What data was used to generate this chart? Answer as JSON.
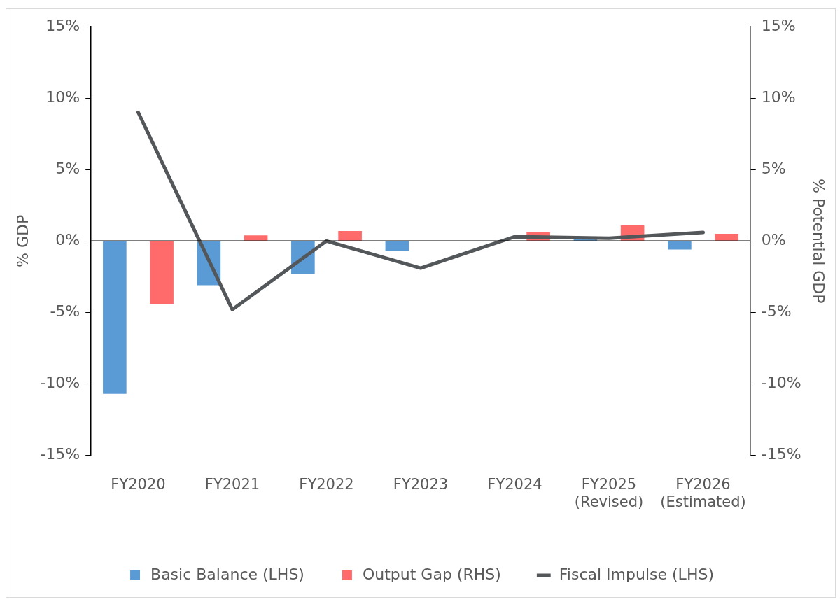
{
  "chart_data": {
    "type": "bar",
    "categories": [
      "FY2020",
      "FY2021",
      "FY2022",
      "FY2023",
      "FY2024",
      "FY2025\n(Revised)",
      "FY2026\n(Estimated)"
    ],
    "ylabel": "% GDP",
    "y2label": "% Potential GDP",
    "ylim": [
      -15,
      15
    ],
    "yticks": [
      {
        "value": -15,
        "label": "-15%"
      },
      {
        "value": -10,
        "label": "-10%"
      },
      {
        "value": -5,
        "label": "-5%"
      },
      {
        "value": 0,
        "label": "0%"
      },
      {
        "value": 5,
        "label": "5%"
      },
      {
        "value": 10,
        "label": "10%"
      },
      {
        "value": 15,
        "label": "15%"
      }
    ],
    "y2lim": [
      -15,
      15
    ],
    "y2ticks": [
      {
        "value": -15,
        "label": "-15%"
      },
      {
        "value": -10,
        "label": "-10%"
      },
      {
        "value": -5,
        "label": "-5%"
      },
      {
        "value": 0,
        "label": "0%"
      },
      {
        "value": 5,
        "label": "5%"
      },
      {
        "value": 10,
        "label": "10%"
      },
      {
        "value": 15,
        "label": "15%"
      }
    ],
    "series": [
      {
        "name": "Basic Balance (LHS)",
        "color": "#5b9bd5",
        "values": [
          -10.7,
          -3.1,
          -2.3,
          -0.7,
          0,
          0.2,
          -0.6
        ]
      },
      {
        "name": "Output Gap (RHS)",
        "color": "#ff6b6b",
        "axis": "y2",
        "values": [
          -4.4,
          0.4,
          0.7,
          0,
          0.6,
          1.1,
          0.5
        ]
      },
      {
        "name": "Fiscal Impulse (LHS)",
        "type": "line",
        "color": "#53575a",
        "values": [
          9.0,
          -4.8,
          0,
          -1.9,
          0.3,
          0.2,
          0.6
        ]
      }
    ],
    "legend": "bottom",
    "marker": "none"
  }
}
